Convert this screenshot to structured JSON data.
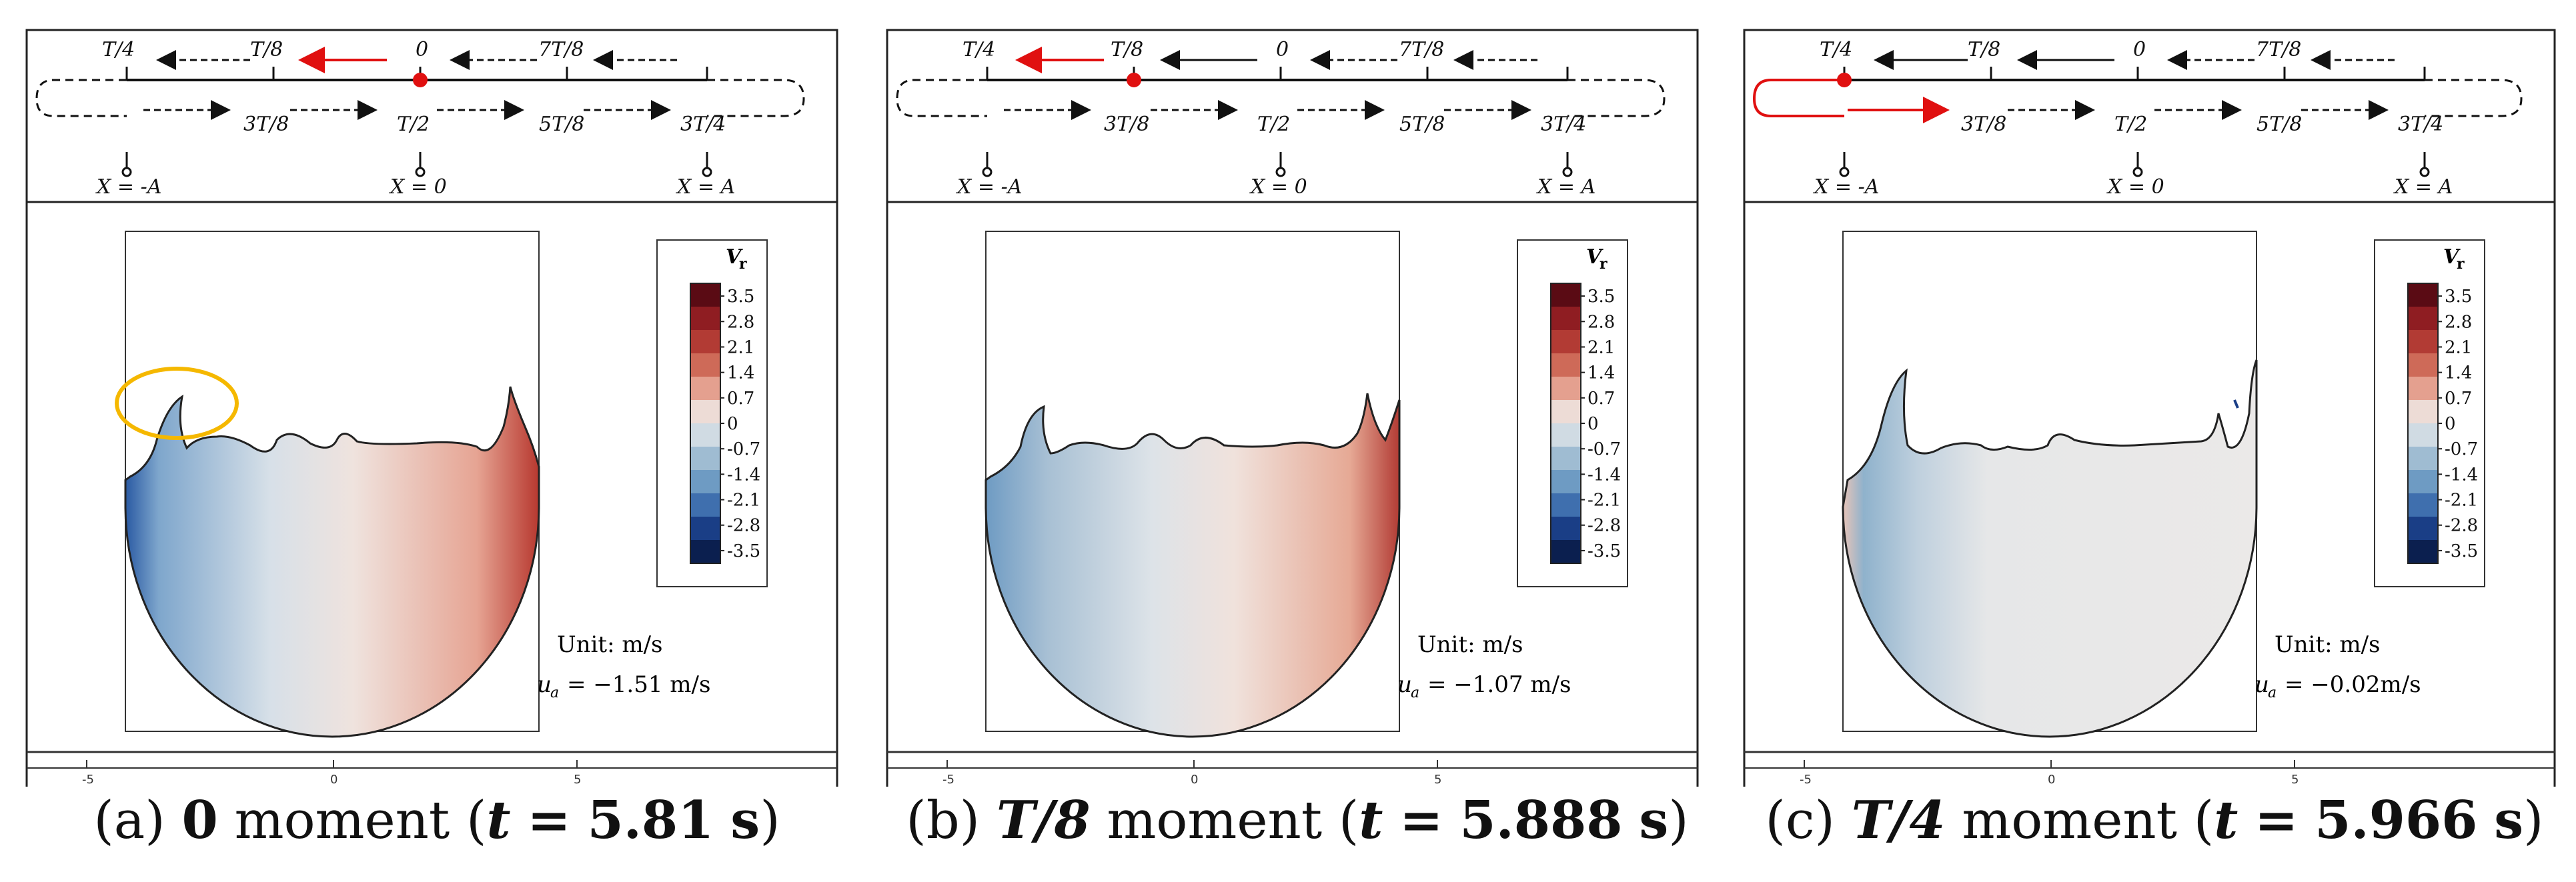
{
  "schematic": {
    "top_labels": [
      "T/4",
      "T/8",
      "0",
      "7T/8"
    ],
    "bottom_labels": [
      "3T/8",
      "T/2",
      "5T/8",
      "3T/4"
    ],
    "x_labels": [
      "X = -A",
      "X = 0",
      "X = A"
    ]
  },
  "colorbar": {
    "title": "V",
    "title_sub": "r",
    "ticks": [
      "3.5",
      "2.8",
      "2.1",
      "1.4",
      "0.7",
      "0",
      "-0.7",
      "-1.4",
      "-2.1",
      "-2.8",
      "-3.5"
    ],
    "colors": [
      "#5a0b14",
      "#8f1d22",
      "#b23b34",
      "#ce6a58",
      "#e4a08f",
      "#eddcd6",
      "#d0dbe3",
      "#9fbcd2",
      "#6e9bc3",
      "#3f6fae",
      "#1a3e86",
      "#0b1f4f"
    ]
  },
  "axis_ticks": [
    "-5",
    "0",
    "5"
  ],
  "unit_text": "Unit: m/s",
  "ua_symbol": "u",
  "ua_sub": "a",
  "panels": [
    {
      "letter": "(a)",
      "moment": "0",
      "moment_word": "moment",
      "t_value": "5.81",
      "t_unit": "s",
      "ua_value": "= −1.51 m/s"
    },
    {
      "letter": "(b)",
      "moment": "T/8",
      "moment_word": "moment",
      "t_value": "5.888",
      "t_unit": "s",
      "ua_value": "= −1.07 m/s"
    },
    {
      "letter": "(c)",
      "moment": "T/4",
      "moment_word": "moment",
      "t_value": "5.966",
      "t_unit": "s",
      "ua_value": "= −0.02m/s"
    }
  ],
  "highlight_color": "#f5b800",
  "arrow_highlight_color": "#e01010"
}
